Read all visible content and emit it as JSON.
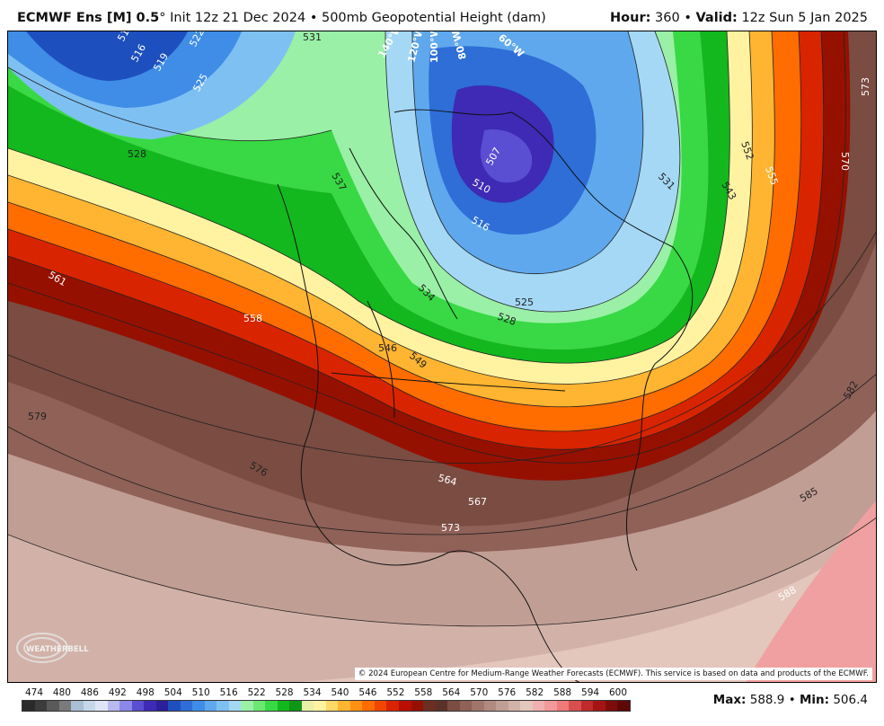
{
  "header": {
    "model": "ECMWF Ens [M] 0.5",
    "degree": "°",
    "init": "Init 12z 21 Dec 2024",
    "bullet": "•",
    "field": "500mb Geopotential Height (dam)",
    "hour_label": "Hour:",
    "hour_value": "360",
    "valid_label": "Valid:",
    "valid_value": "12z Sun 5 Jan 2025"
  },
  "map": {
    "contour_labels": [
      "513",
      "516",
      "519",
      "522",
      "525",
      "528",
      "531",
      "537",
      "561",
      "558",
      "579",
      "576",
      "564",
      "567",
      "573",
      "510",
      "507",
      "516",
      "525",
      "528",
      "531",
      "534",
      "543",
      "552",
      "555",
      "570",
      "573",
      "582",
      "585",
      "588",
      "546",
      "549"
    ],
    "meridian_labels": [
      "140°W",
      "120°W",
      "100°W",
      "80°W",
      "60°W"
    ],
    "copyright": "© 2024 European Centre for Medium-Range Weather Forecasts (ECMWF). This service is based on data and products of the ECMWF.",
    "logo_text": "WEATHERBELL"
  },
  "legend": {
    "labels": [
      "474",
      "480",
      "486",
      "492",
      "498",
      "504",
      "510",
      "516",
      "522",
      "528",
      "534",
      "540",
      "546",
      "552",
      "558",
      "564",
      "570",
      "576",
      "582",
      "588",
      "594",
      "600"
    ],
    "colors": [
      "#2a2a2a",
      "#3c3c3c",
      "#5a5a5a",
      "#7a7a7a",
      "#a8bfd4",
      "#c6d7ea",
      "#dfe4f7",
      "#b9b9f0",
      "#8a88e8",
      "#5a4ed2",
      "#3e2ab5",
      "#2b1f9a",
      "#1e4fbf",
      "#2e6ed6",
      "#3f8de6",
      "#5fa8ee",
      "#7fc0f3",
      "#a4d8f5",
      "#9af0a6",
      "#6ce772",
      "#38d944",
      "#12b81e",
      "#0f9616",
      "#e8f0a8",
      "#fff3a2",
      "#ffd867",
      "#ffb531",
      "#ff9213",
      "#ff6c00",
      "#f24600",
      "#d92400",
      "#b80f00",
      "#961000",
      "#6b2e22",
      "#5a3128",
      "#7a4c42",
      "#8f6157",
      "#a0766c",
      "#b08a80",
      "#c19e94",
      "#d2b2a8",
      "#e3c6bc",
      "#f0b0b0",
      "#f49999",
      "#ee7a7a",
      "#d94f4f",
      "#c02a2a",
      "#a51414",
      "#7f0c0c",
      "#5e0808"
    ],
    "max_label": "Max:",
    "max_value": "588.9",
    "min_label": "Min:",
    "min_value": "506.4"
  }
}
